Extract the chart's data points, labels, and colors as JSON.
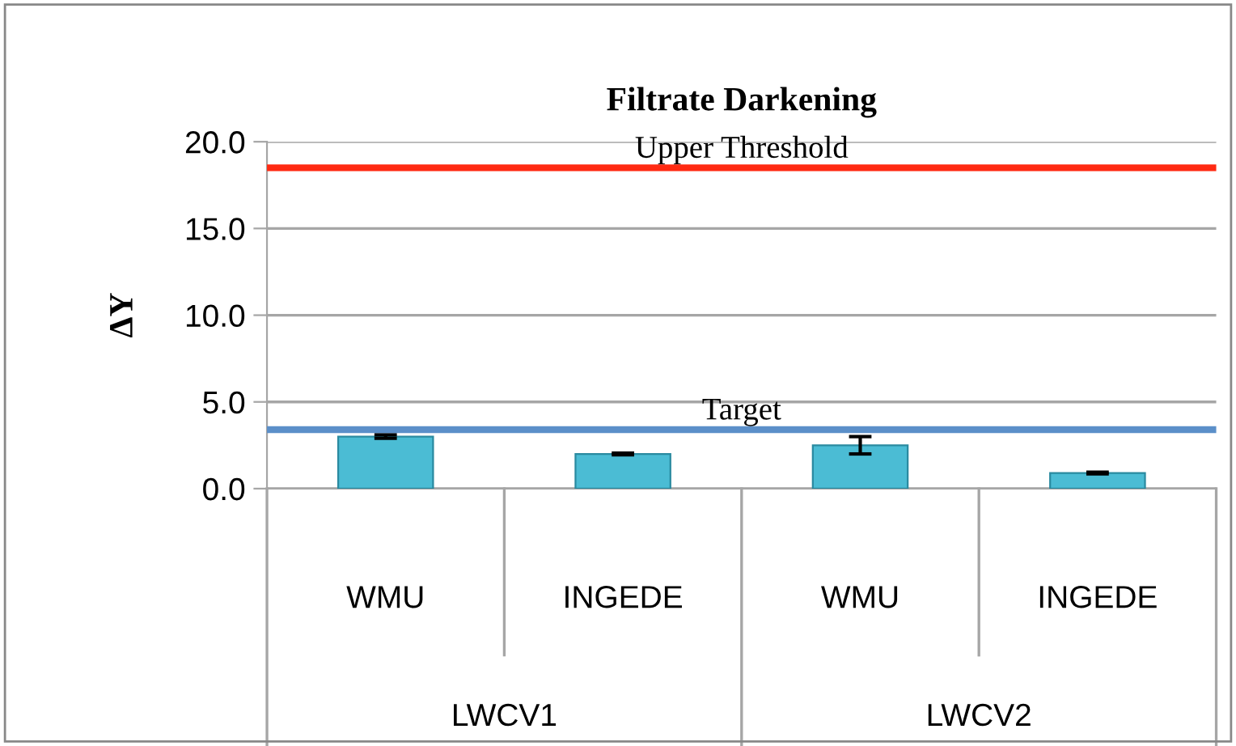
{
  "chart_data": {
    "type": "bar",
    "title": "Filtrate Darkening",
    "ylabel": "ΔY",
    "categories": [
      "WMU",
      "INGEDE",
      "WMU",
      "INGEDE"
    ],
    "values": [
      3.0,
      2.0,
      2.5,
      0.9
    ],
    "errors": [
      0.1,
      0.05,
      0.5,
      0.05
    ],
    "color": "#4bbcd4",
    "ylim": [
      0,
      20
    ],
    "yticks": [
      {
        "value": 0,
        "label": "0.0"
      },
      {
        "value": 5,
        "label": "5.0"
      },
      {
        "value": 10,
        "label": "10.0"
      },
      {
        "value": 15,
        "label": "15.0"
      },
      {
        "value": 20,
        "label": "20.0"
      }
    ],
    "grid": "y",
    "annotations": [
      "LWCV1",
      "LWCV2"
    ],
    "ref_lines": [
      {
        "axis": "y",
        "value": 18.5,
        "label": "Upper Threshold",
        "color": "#ff2a12"
      },
      {
        "axis": "y",
        "value": 3.4,
        "label": "Target",
        "color": "#5b8fc9"
      }
    ]
  }
}
